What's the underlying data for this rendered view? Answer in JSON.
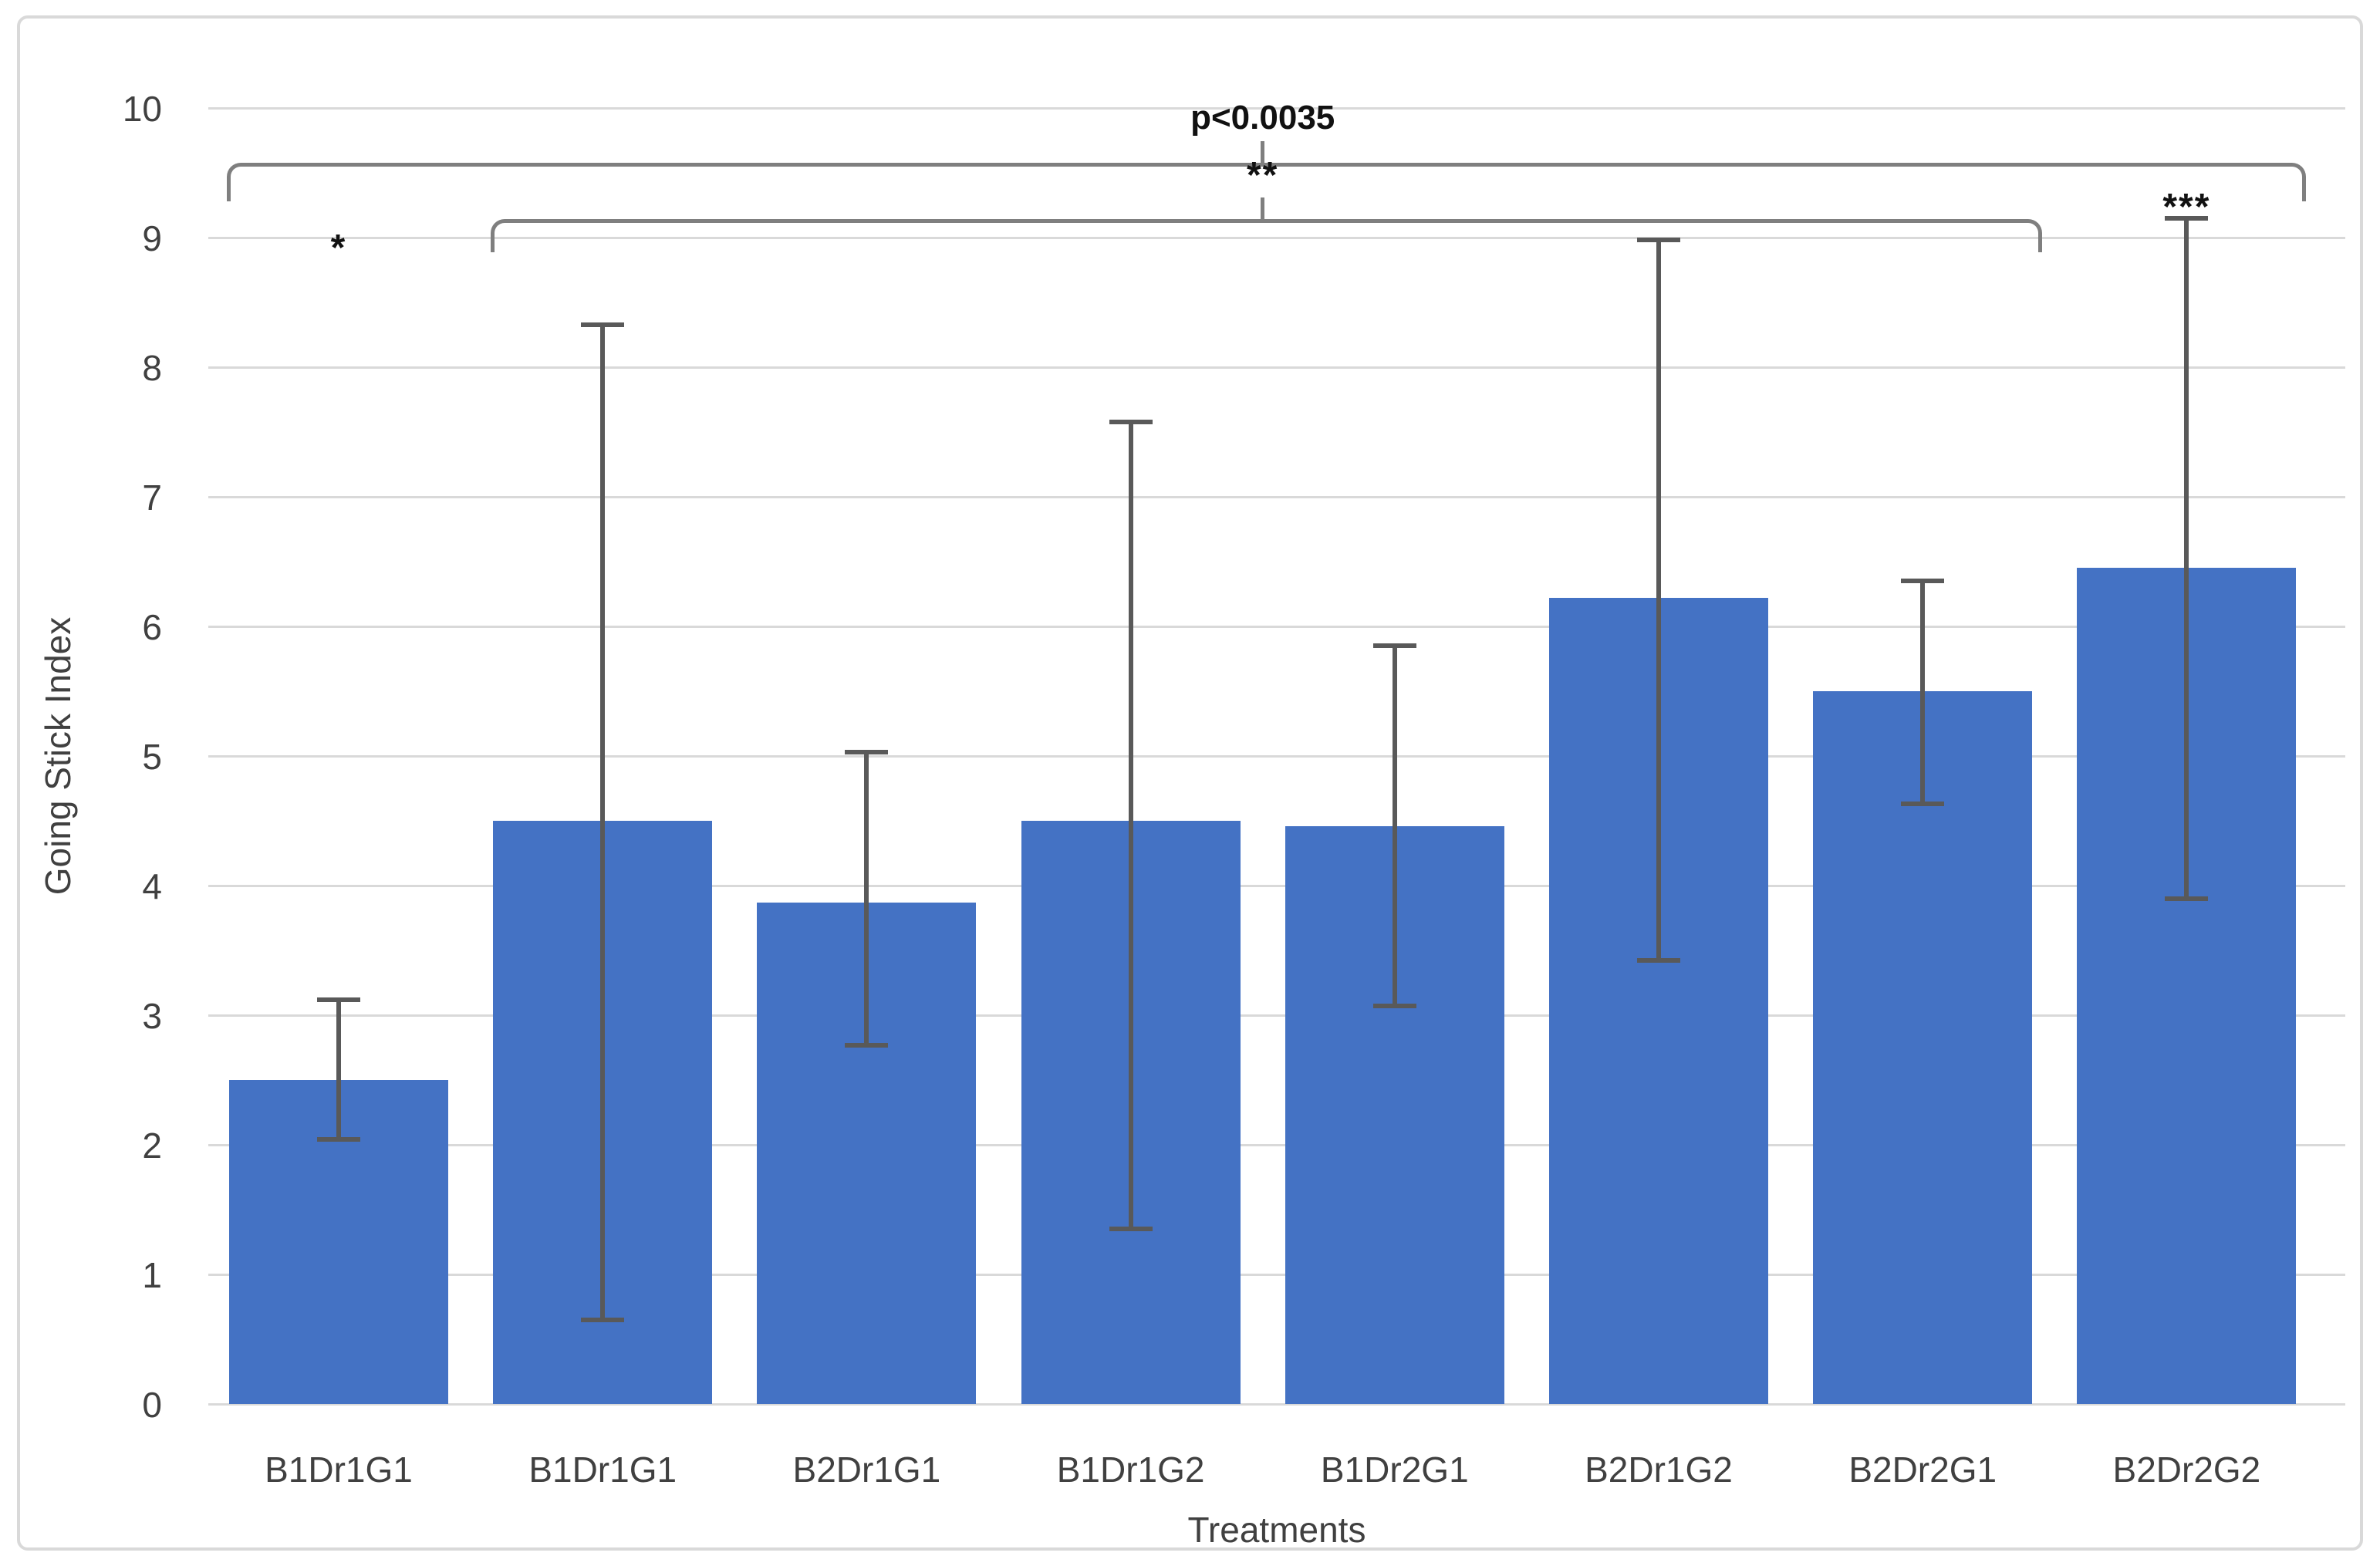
{
  "chart_data": {
    "type": "bar",
    "title": "",
    "xlabel": "Treatments",
    "ylabel": "Going Stick Index",
    "ylim": [
      0,
      10
    ],
    "yticks": [
      0,
      1,
      2,
      3,
      4,
      5,
      6,
      7,
      8,
      9,
      10
    ],
    "grid": true,
    "legend": "none",
    "bar_color": "#4472c4",
    "error_color": "#595959",
    "grid_color": "#d9d9d9",
    "bracket_color": "#7f7f7f",
    "categories": [
      "B1Dr1G1",
      "B1Dr1G1",
      "B2Dr1G1",
      "B1Dr1G2",
      "B1Dr2G1",
      "B2Dr1G2",
      "B2Dr2G1",
      "B2Dr2G2"
    ],
    "values": [
      2.5,
      4.5,
      3.87,
      4.5,
      4.46,
      6.22,
      5.5,
      6.45
    ],
    "error_low": [
      2.04,
      0.65,
      2.77,
      1.35,
      3.07,
      3.42,
      4.63,
      3.9
    ],
    "error_high": [
      3.12,
      8.33,
      5.03,
      7.58,
      5.85,
      8.98,
      6.35,
      9.15
    ],
    "annotations": {
      "brackets": [
        {
          "label": "p<0.0035",
          "label_style": "p-label",
          "from": 0,
          "to": 7,
          "y_value": 9.58,
          "hook_drop": 45
        },
        {
          "label": "**",
          "label_style": "star-label",
          "from": 1,
          "to": 6,
          "y_value": 9.14,
          "hook_drop": 38
        }
      ],
      "stars": [
        {
          "text": "*",
          "bar": 0,
          "y_value": 8.95
        },
        {
          "text": "***",
          "bar": 7,
          "y_value": 9.27
        }
      ]
    }
  }
}
